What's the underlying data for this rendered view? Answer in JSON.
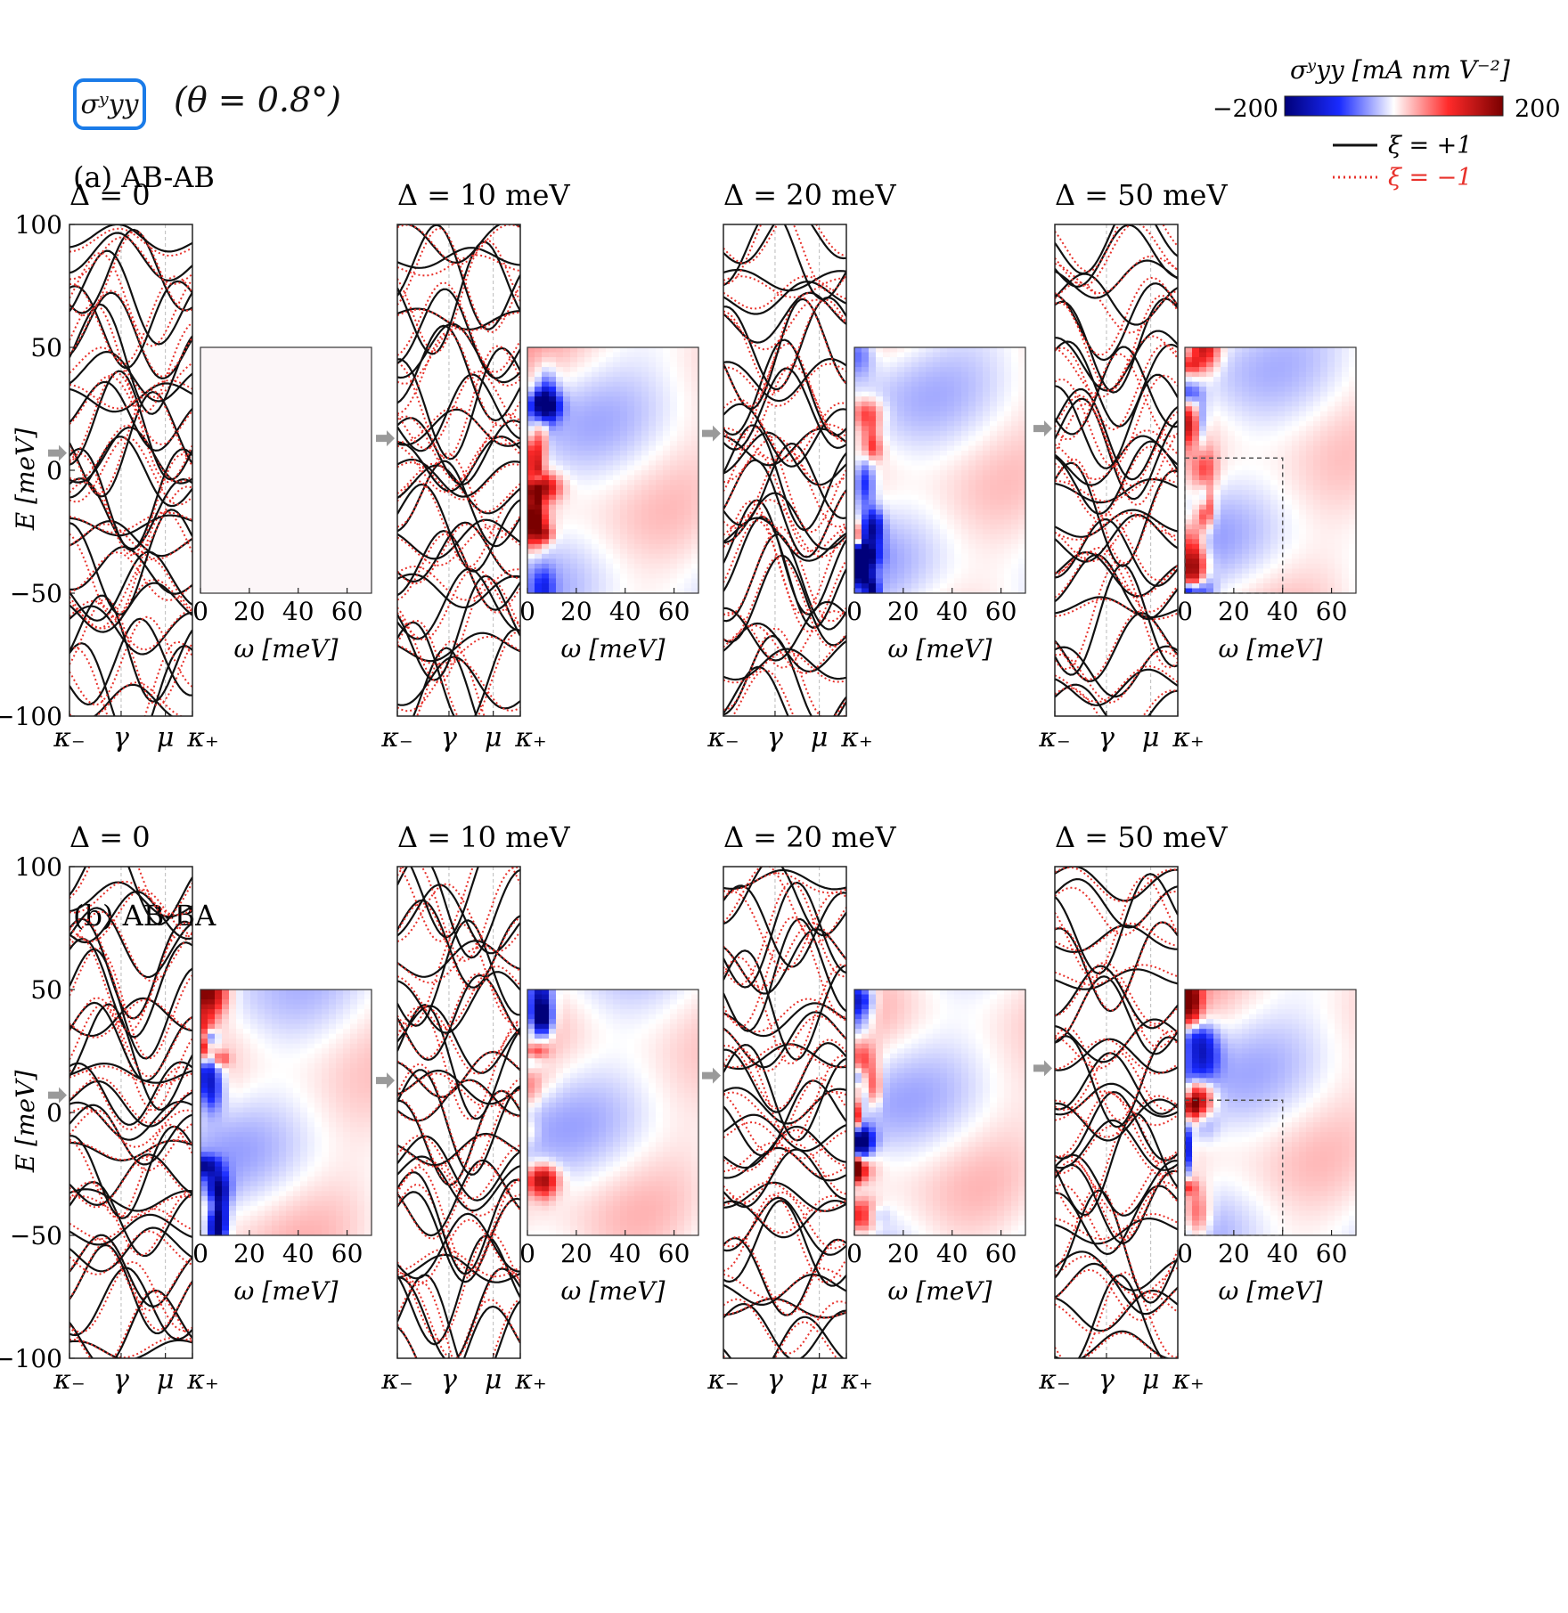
{
  "figure": {
    "badge_label": "σʸyy",
    "theta_label": "(θ = 0.8°)",
    "colorbar": {
      "label": "σʸyy [mA nm V⁻²]",
      "min_label": "−200",
      "max_label": "200",
      "min": -200,
      "max": 200,
      "colors": [
        "#00007a",
        "#1a2bff",
        "#ffffff",
        "#ff2a2a",
        "#7a0000"
      ]
    },
    "legend": [
      {
        "label": "ξ = +1",
        "color": "#111111",
        "style": "solid"
      },
      {
        "label": "ξ = −1",
        "color": "#e8312b",
        "style": "dotted"
      }
    ],
    "colors": {
      "valley_plus": "#111111",
      "valley_minus": "#e8312b",
      "fermi_arrow": "#9a9a9a",
      "guide": "#bbbbbb"
    }
  },
  "chart_data": [
    {
      "type": "line",
      "row": "(a) AB-AB",
      "subplot": "Δ = 0",
      "title": "Δ = 0",
      "xlabel": "",
      "ylabel": "E [meV]",
      "ylim": [
        -100,
        100
      ],
      "yticks": [
        100,
        50,
        0,
        -50,
        -100
      ],
      "ytick_labels": [
        "100",
        "50",
        "0",
        "−50",
        "−100"
      ],
      "x_ticks": [
        "κ₋",
        "γ",
        "μ",
        "κ₊"
      ],
      "fermi_level": 7,
      "series": [
        {
          "name": "ξ = +1"
        },
        {
          "name": "ξ = −1"
        }
      ]
    },
    {
      "type": "heatmap",
      "row": "(a) AB-AB",
      "subplot": "Δ = 0",
      "xlabel": "ω [meV]",
      "xlim": [
        0,
        70
      ],
      "xticks": [
        0,
        20,
        40,
        60
      ],
      "xtick_labels": [
        "0",
        "20",
        "40",
        "60"
      ],
      "ylim": [
        -50,
        50
      ],
      "max_abs": 0,
      "seed": 1,
      "dashed_box": null
    },
    {
      "type": "line",
      "row": "(a) AB-AB",
      "subplot": "Δ = 10 meV",
      "title": "Δ = 10 meV",
      "ylim": [
        -100,
        100
      ],
      "x_ticks": [
        "κ₋",
        "γ",
        "μ",
        "κ₊"
      ],
      "fermi_level": 13,
      "series": [
        {
          "name": "ξ = +1"
        },
        {
          "name": "ξ = −1"
        }
      ]
    },
    {
      "type": "heatmap",
      "row": "(a) AB-AB",
      "subplot": "Δ = 10 meV",
      "xlabel": "ω [meV]",
      "xlim": [
        0,
        70
      ],
      "xticks": [
        0,
        20,
        40,
        60
      ],
      "xtick_labels": [
        "0",
        "20",
        "40",
        "60"
      ],
      "ylim": [
        -50,
        50
      ],
      "max_abs": 200,
      "seed": 2,
      "dashed_box": null
    },
    {
      "type": "line",
      "row": "(a) AB-AB",
      "subplot": "Δ = 20 meV",
      "title": "Δ = 20 meV",
      "ylim": [
        -100,
        100
      ],
      "x_ticks": [
        "κ₋",
        "γ",
        "μ",
        "κ₊"
      ],
      "fermi_level": 15,
      "series": [
        {
          "name": "ξ = +1"
        },
        {
          "name": "ξ = −1"
        }
      ]
    },
    {
      "type": "heatmap",
      "row": "(a) AB-AB",
      "subplot": "Δ = 20 meV",
      "xlabel": "ω [meV]",
      "xlim": [
        0,
        70
      ],
      "xticks": [
        0,
        20,
        40,
        60
      ],
      "xtick_labels": [
        "0",
        "20",
        "40",
        "60"
      ],
      "ylim": [
        -50,
        50
      ],
      "max_abs": 200,
      "seed": 3,
      "dashed_box": null
    },
    {
      "type": "line",
      "row": "(a) AB-AB",
      "subplot": "Δ = 50 meV",
      "title": "Δ = 50 meV",
      "ylim": [
        -100,
        100
      ],
      "x_ticks": [
        "κ₋",
        "γ",
        "μ",
        "κ₊"
      ],
      "fermi_level": 17,
      "series": [
        {
          "name": "ξ = +1"
        },
        {
          "name": "ξ = −1"
        }
      ]
    },
    {
      "type": "heatmap",
      "row": "(a) AB-AB",
      "subplot": "Δ = 50 meV",
      "xlabel": "ω [meV]",
      "xlim": [
        0,
        70
      ],
      "xticks": [
        0,
        20,
        40,
        60
      ],
      "xtick_labels": [
        "0",
        "20",
        "40",
        "60"
      ],
      "ylim": [
        -50,
        50
      ],
      "max_abs": 200,
      "seed": 4,
      "dashed_box": {
        "x0": 0,
        "x1": 40,
        "y_top": 5,
        "y_bottom": -50
      }
    },
    {
      "type": "line",
      "row": "(b) AB-BA",
      "subplot": "Δ = 0",
      "title": "Δ = 0",
      "xlabel": "",
      "ylabel": "E [meV]",
      "ylim": [
        -100,
        100
      ],
      "yticks": [
        100,
        50,
        0,
        -50,
        -100
      ],
      "ytick_labels": [
        "100",
        "50",
        "0",
        "−50",
        "−100"
      ],
      "x_ticks": [
        "κ₋",
        "γ",
        "μ",
        "κ₊"
      ],
      "fermi_level": 7,
      "series": [
        {
          "name": "ξ = +1"
        },
        {
          "name": "ξ = −1"
        }
      ]
    },
    {
      "type": "heatmap",
      "row": "(b) AB-BA",
      "subplot": "Δ = 0",
      "xlabel": "ω [meV]",
      "xlim": [
        0,
        70
      ],
      "xticks": [
        0,
        20,
        40,
        60
      ],
      "xtick_labels": [
        "0",
        "20",
        "40",
        "60"
      ],
      "ylim": [
        -50,
        50
      ],
      "max_abs": 200,
      "seed": 5,
      "dashed_box": null
    },
    {
      "type": "line",
      "row": "(b) AB-BA",
      "subplot": "Δ = 10 meV",
      "title": "Δ = 10 meV",
      "ylim": [
        -100,
        100
      ],
      "x_ticks": [
        "κ₋",
        "γ",
        "μ",
        "κ₊"
      ],
      "fermi_level": 13,
      "series": [
        {
          "name": "ξ = +1"
        },
        {
          "name": "ξ = −1"
        }
      ]
    },
    {
      "type": "heatmap",
      "row": "(b) AB-BA",
      "subplot": "Δ = 10 meV",
      "xlabel": "ω [meV]",
      "xlim": [
        0,
        70
      ],
      "xticks": [
        0,
        20,
        40,
        60
      ],
      "xtick_labels": [
        "0",
        "20",
        "40",
        "60"
      ],
      "ylim": [
        -50,
        50
      ],
      "max_abs": 200,
      "seed": 6,
      "dashed_box": null
    },
    {
      "type": "line",
      "row": "(b) AB-BA",
      "subplot": "Δ = 20 meV",
      "title": "Δ = 20 meV",
      "ylim": [
        -100,
        100
      ],
      "x_ticks": [
        "κ₋",
        "γ",
        "μ",
        "κ₊"
      ],
      "fermi_level": 15,
      "series": [
        {
          "name": "ξ = +1"
        },
        {
          "name": "ξ = −1"
        }
      ]
    },
    {
      "type": "heatmap",
      "row": "(b) AB-BA",
      "subplot": "Δ = 20 meV",
      "xlabel": "ω [meV]",
      "xlim": [
        0,
        70
      ],
      "xticks": [
        0,
        20,
        40,
        60
      ],
      "xtick_labels": [
        "0",
        "20",
        "40",
        "60"
      ],
      "ylim": [
        -50,
        50
      ],
      "max_abs": 200,
      "seed": 7,
      "dashed_box": null
    },
    {
      "type": "line",
      "row": "(b) AB-BA",
      "subplot": "Δ = 50 meV",
      "title": "Δ = 50 meV",
      "ylim": [
        -100,
        100
      ],
      "x_ticks": [
        "κ₋",
        "γ",
        "μ",
        "κ₊"
      ],
      "fermi_level": 18,
      "series": [
        {
          "name": "ξ = +1"
        },
        {
          "name": "ξ = −1"
        }
      ]
    },
    {
      "type": "heatmap",
      "row": "(b) AB-BA",
      "subplot": "Δ = 50 meV",
      "xlabel": "ω [meV]",
      "xlim": [
        0,
        70
      ],
      "xticks": [
        0,
        20,
        40,
        60
      ],
      "xtick_labels": [
        "0",
        "20",
        "40",
        "60"
      ],
      "ylim": [
        -50,
        50
      ],
      "max_abs": 200,
      "seed": 8,
      "dashed_box": {
        "x0": 0,
        "x1": 40,
        "y_top": 5,
        "y_bottom": -50
      }
    }
  ]
}
